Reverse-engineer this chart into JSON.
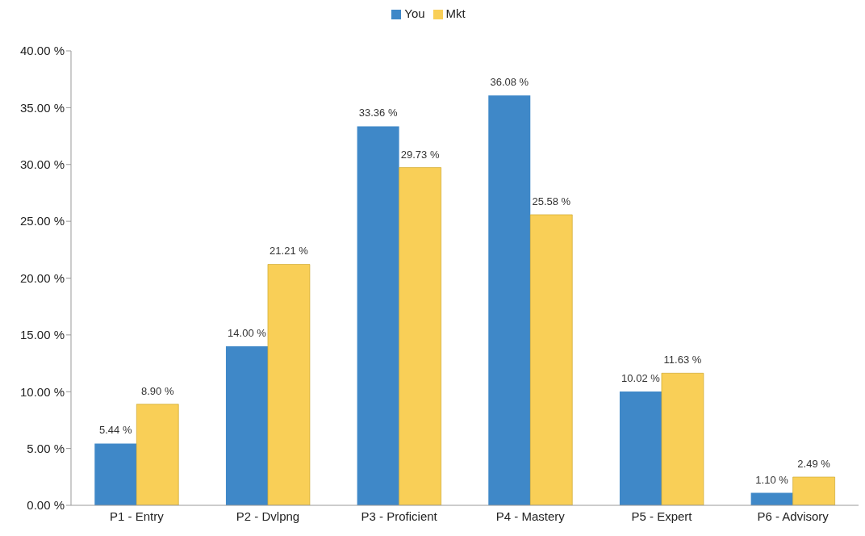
{
  "chart_data": {
    "type": "bar",
    "categories": [
      "P1 - Entry",
      "P2 - Dvlpng",
      "P3 - Proficient",
      "P4 - Mastery",
      "P5 - Expert",
      "P6 - Advisory"
    ],
    "series": [
      {
        "name": "You",
        "color": "#3f88c8",
        "values": [
          5.44,
          14.0,
          33.36,
          36.08,
          10.02,
          1.1
        ],
        "value_labels": [
          "5.44 %",
          "14.00 %",
          "33.36 %",
          "36.08 %",
          "10.02 %",
          "1.10 %"
        ]
      },
      {
        "name": "Mkt",
        "color": "#f9cf57",
        "values": [
          8.9,
          21.21,
          29.73,
          25.58,
          11.63,
          2.49
        ],
        "value_labels": [
          "8.90 %",
          "21.21 %",
          "29.73 %",
          "25.58 %",
          "11.63 %",
          "2.49 %"
        ]
      }
    ],
    "ylim": [
      0,
      40
    ],
    "yticks": [
      {
        "value": 0,
        "label": "0.00 %"
      },
      {
        "value": 5,
        "label": "5.00 %"
      },
      {
        "value": 10,
        "label": "10.00 %"
      },
      {
        "value": 15,
        "label": "15.00 %"
      },
      {
        "value": 20,
        "label": "20.00 %"
      },
      {
        "value": 25,
        "label": "25.00 %"
      },
      {
        "value": 30,
        "label": "30.00 %"
      },
      {
        "value": 35,
        "label": "35.00 %"
      },
      {
        "value": 40,
        "label": "40.00 %"
      }
    ],
    "grid": false,
    "legend": "top"
  }
}
